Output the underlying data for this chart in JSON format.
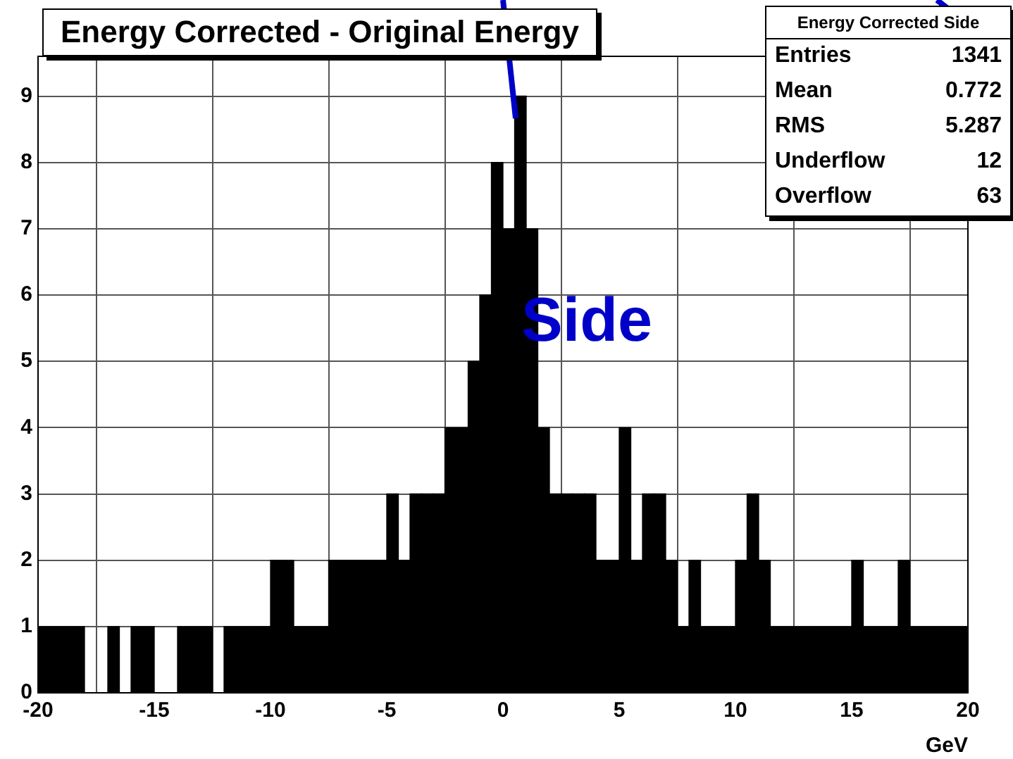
{
  "chart_data": {
    "type": "histogram",
    "title": "Energy Corrected - Original Energy",
    "xlabel": "GeV",
    "bins": [
      -20,
      -19.5,
      -19,
      -18.5,
      -18,
      -17.5,
      -17,
      -16.5,
      -16,
      -15.5,
      -15,
      -14.5,
      -14,
      -13.5,
      -13,
      -12.5,
      -12,
      -11.5,
      -11,
      -10.5,
      -10,
      -9.5,
      -9,
      -8.5,
      -8,
      -7.5,
      -7,
      -6.5,
      -6,
      -5.5,
      -5,
      -4.5,
      -4,
      -3.5,
      -3,
      -2.5,
      -2,
      -1.5,
      -1,
      -0.5,
      0,
      0.5,
      1,
      1.5,
      2,
      2.5,
      3,
      3.5,
      4,
      4.5,
      5,
      5.5,
      6,
      6.5,
      7,
      7.5,
      8,
      8.5,
      9,
      9.5,
      10,
      10.5,
      11,
      11.5,
      12,
      12.5,
      13,
      13.5,
      14,
      14.5,
      15,
      15.5,
      16,
      16.5,
      17,
      17.5,
      18,
      18.5,
      19,
      19.5,
      20
    ],
    "values": [
      1,
      1,
      1,
      1,
      0,
      0,
      1,
      0,
      1,
      1,
      0,
      0,
      1,
      1,
      1,
      0,
      1,
      1,
      1,
      1,
      2,
      2,
      1,
      1,
      1,
      2,
      2,
      2,
      2,
      2,
      3,
      2,
      3,
      3,
      3,
      4,
      4,
      5,
      6,
      8,
      7,
      9,
      7,
      4,
      3,
      3,
      3,
      3,
      2,
      2,
      4,
      2,
      3,
      3,
      2,
      1,
      2,
      1,
      1,
      1,
      2,
      3,
      2,
      1,
      1,
      1,
      1,
      1,
      1,
      1,
      2,
      1,
      1,
      1,
      2,
      1,
      1,
      1,
      1,
      1
    ],
    "color": "#000000",
    "xlim": [
      -20,
      20
    ],
    "xticks": [
      -20,
      -15,
      -10,
      -5,
      0,
      5,
      10,
      15,
      20
    ],
    "ylim": [
      0,
      9.6
    ],
    "yticks": [
      0,
      1,
      2,
      3,
      4,
      5,
      6,
      7,
      8,
      9
    ],
    "grid": true,
    "annotations": [
      "Side",
      "Energy Corrected Side",
      "Entries 1341",
      "Mean 0.772",
      "RMS 5.287",
      "Underflow 12",
      "Overflow 63"
    ]
  }
}
